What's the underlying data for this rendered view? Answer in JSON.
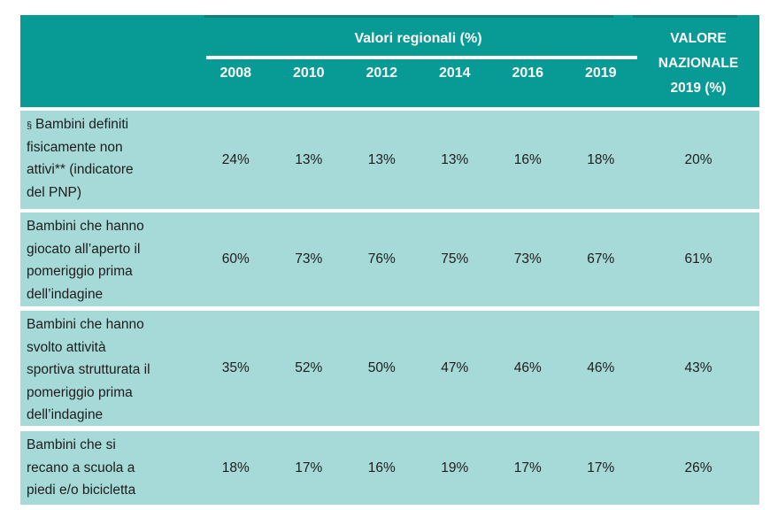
{
  "table": {
    "header": {
      "regional_title": "Valori regionali (%)",
      "national_title_lines": [
        "VALORE",
        "NAZIONALE",
        "2019 (%)"
      ],
      "years": [
        "2008",
        "2010",
        "2012",
        "2014",
        "2016",
        "2019"
      ]
    },
    "rows": [
      {
        "prefix": "§",
        "label_lines": [
          "Bambini definiti",
          "fisicamente non",
          "attivi** (indicatore",
          "del PNP)"
        ],
        "values": [
          "24%",
          "13%",
          "13%",
          "13%",
          "16%",
          "18%"
        ],
        "national": "20%"
      },
      {
        "prefix": "",
        "label_lines": [
          "Bambini che hanno",
          "giocato all’aperto il",
          "pomeriggio prima",
          "dell’indagine"
        ],
        "values": [
          "60%",
          "73%",
          "76%",
          "75%",
          "73%",
          "67%"
        ],
        "national": "61%"
      },
      {
        "prefix": "",
        "label_lines": [
          "Bambini che hanno",
          "svolto attività",
          "sportiva strutturata il",
          "pomeriggio prima",
          "dell’indagine"
        ],
        "values": [
          "35%",
          "52%",
          "50%",
          "47%",
          "46%",
          "46%"
        ],
        "national": "43%"
      },
      {
        "prefix": "",
        "label_lines": [
          "Bambini che si",
          "recano a scuola a",
          "piedi e/o bicicletta"
        ],
        "values": [
          "18%",
          "17%",
          "16%",
          "19%",
          "17%",
          "17%"
        ],
        "national": "26%"
      }
    ],
    "colors": {
      "header_bg": "#089a94",
      "header_top_accent": "#0a817d",
      "row_bg": "#a6dad9",
      "header_text": "#ffffff",
      "body_text": "#1c1c1c"
    }
  }
}
